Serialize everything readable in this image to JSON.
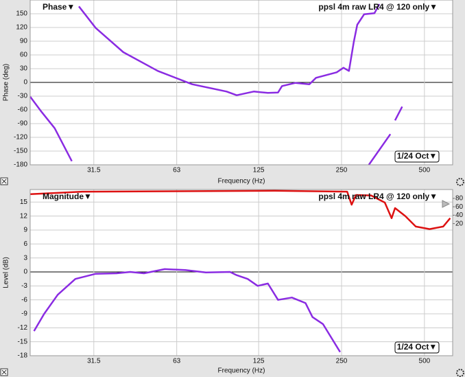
{
  "chart_data": [
    {
      "type": "line",
      "title": "Phase▼",
      "measurement": "ppsl 4m raw LR4 @ 120 only▼",
      "smoothing": "1/24 Oct▼",
      "y_label": "Phase (deg)",
      "x_label": "Frequency (Hz)",
      "xscale": "log",
      "xlim": [
        18.5,
        633
      ],
      "ylim": [
        -180,
        180
      ],
      "xticks": [
        31.5,
        63,
        125,
        250,
        500
      ],
      "yticks": [
        -180,
        -150,
        -120,
        -90,
        -60,
        -30,
        0,
        30,
        60,
        90,
        120,
        150
      ],
      "grid": true,
      "series": [
        {
          "color": "#8a2be2",
          "x": [
            18.5,
            20.2,
            22.7,
            26.2,
            null,
            27.8,
            32.0,
            40.3,
            53.8,
            71.7,
            95.6,
            104,
            120,
            135,
            147,
            152,
            170,
            191,
            202,
            240,
            254,
            266,
            277,
            285,
            302,
            329,
            343,
            null,
            314,
            376,
            null,
            391,
            415
          ],
          "values": [
            -31,
            -62,
            -100,
            -172,
            null,
            166,
            119,
            66,
            25,
            -4,
            -20,
            -28,
            -20,
            -23,
            -22,
            -8,
            -1,
            -4,
            10,
            22,
            32,
            25,
            89,
            126,
            149,
            151,
            171,
            null,
            -180,
            -113,
            null,
            -83,
            -53
          ]
        }
      ]
    },
    {
      "type": "line",
      "title": "Magnitude▼",
      "measurement": "ppsl 4m raw LR4 @ 120 only▼",
      "smoothing": "1/24 Oct▼",
      "y_label": "Level (dB)",
      "x_label": "Frequency (Hz)",
      "xscale": "log",
      "xlim": [
        18.5,
        633
      ],
      "ylim": [
        -18,
        17.7
      ],
      "y2lim": [
        -294,
        101
      ],
      "xticks": [
        31.5,
        63,
        125,
        250,
        500
      ],
      "yticks": [
        -18,
        -15,
        -12,
        -9,
        -6,
        -3,
        0,
        3,
        6,
        9,
        12,
        15
      ],
      "y2ticks": [
        20,
        40,
        60,
        80
      ],
      "grid": true,
      "series": [
        {
          "color": "#8a2be2",
          "x": [
            19.1,
            20.8,
            23.3,
            27.0,
            32.0,
            38.1,
            42.7,
            47.9,
            57.0,
            67.7,
            80.4,
            98.4,
            104,
            114,
            124,
            135,
            147,
            165,
            185,
            196,
            214,
            247
          ],
          "values": [
            -12.7,
            -9,
            -4.9,
            -1.5,
            -0.4,
            -0.3,
            0,
            -0.3,
            0.6,
            0.4,
            -0.1,
            0,
            -0.7,
            -1.5,
            -3,
            -2.5,
            -6,
            -5.5,
            -6.7,
            -9.7,
            -11.2,
            -17.2
          ]
        },
        {
          "color": "#dd1111",
          "axis": "y2",
          "x": [
            18.5,
            28.6,
            143,
            262,
            272,
            282,
            320,
            359,
            380,
            391,
            426,
            465,
            522,
            585,
            620
          ],
          "values": [
            90,
            96,
            98,
            96,
            65,
            88,
            87,
            70,
            33,
            57,
            38,
            13,
            7,
            13,
            33
          ]
        }
      ]
    }
  ]
}
